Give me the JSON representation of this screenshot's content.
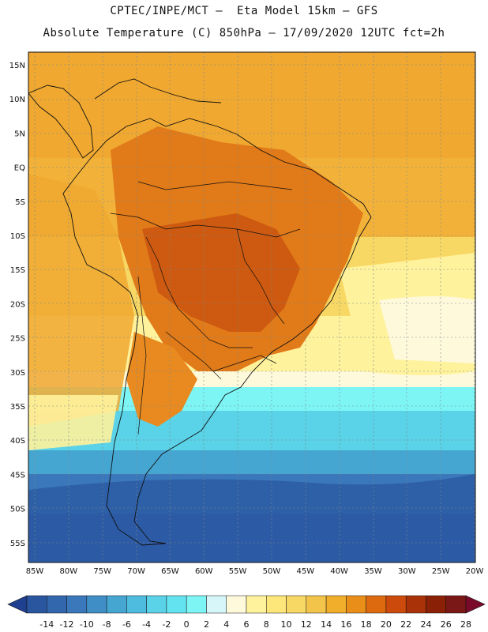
{
  "title_line1": "CPTEC/INPE/MCT –  Eta Model 15km – GFS",
  "title_line2": "Absolute Temperature (C) 850hPa – 17/09/2020 12UTC fct=2h",
  "lat_labels": [
    "15N",
    "10N",
    "5N",
    "EQ",
    "5S",
    "10S",
    "15S",
    "20S",
    "25S",
    "30S",
    "35S",
    "40S",
    "45S",
    "50S",
    "55S"
  ],
  "lon_labels": [
    "85W",
    "80W",
    "75W",
    "70W",
    "65W",
    "60W",
    "55W",
    "50W",
    "45W",
    "40W",
    "35W",
    "30W",
    "25W",
    "20W"
  ],
  "colorbar": {
    "labels": [
      "-14",
      "-12",
      "-10",
      "-8",
      "-6",
      "-4",
      "-2",
      "0",
      "2",
      "4",
      "6",
      "8",
      "10",
      "12",
      "14",
      "16",
      "18",
      "20",
      "22",
      "24",
      "26",
      "28"
    ],
    "colors": [
      "#1f3f8f",
      "#2a56a0",
      "#3266ad",
      "#3a78bb",
      "#3f8ec6",
      "#46a6d2",
      "#4ebcde",
      "#5ad2e8",
      "#63e2ef",
      "#7df5f5",
      "#d6f6fa",
      "#fff9dc",
      "#fff29c",
      "#fde77a",
      "#f8d864",
      "#f2c44a",
      "#f0ae2a",
      "#ea8e1a",
      "#de6a10",
      "#cc4a0c",
      "#aa3208",
      "#8a2006",
      "#7a1818",
      "#7a0a2a"
    ]
  },
  "map_colors": {
    "ocean_hot": "#f0a830",
    "land_hot": "#d86a10",
    "land_very_hot": "#c45510",
    "warm": "#f8d864",
    "pale": "#fff29c",
    "very_pale": "#fff9dc",
    "cyan_light": "#7df5f5",
    "cyan": "#5ad2e8",
    "blue_light": "#3f8ec6",
    "blue": "#3266ad",
    "blue_dark": "#2a56a0"
  }
}
